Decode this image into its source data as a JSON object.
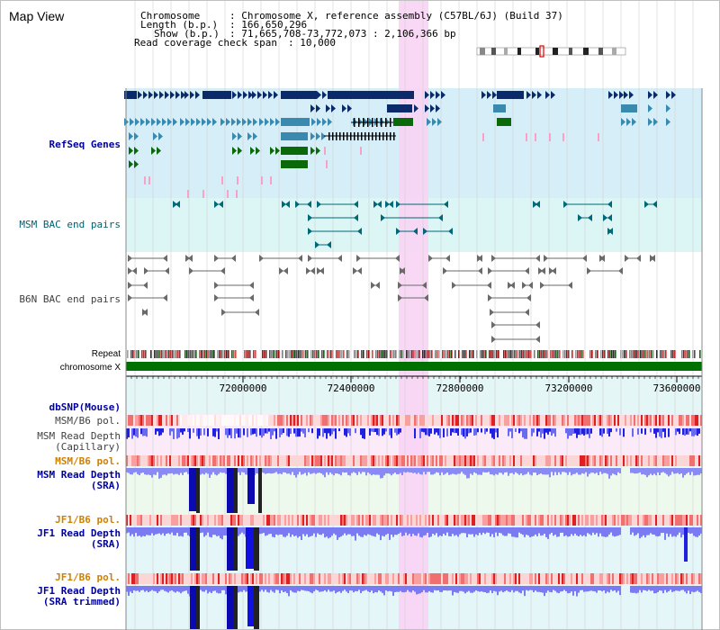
{
  "title": "Map View",
  "info": {
    "chromosome_label": "Chromosome",
    "chromosome_value": ": Chromosome X, reference assembly (C57BL/6J) (Build 37)",
    "length_label": "Length (b.p.)",
    "length_value": ": 166,650,296",
    "show_label": "Show (b.p.)",
    "show_value": ": 71,665,708-73,772,073 : 2,106,366 bp",
    "span_label": "Read coverage check span",
    "span_value": ": 10,000"
  },
  "tracks": {
    "refseq": "RefSeq Genes",
    "msm_bac": "MSM BAC end pairs",
    "b6n_bac": "B6N BAC end pairs",
    "repeat": "Repeat",
    "chromosome": "chromosome X"
  },
  "axis": {
    "start": 71665708,
    "end": 73772073,
    "ticks": [
      "72000000",
      "72400000",
      "72800000",
      "73200000",
      "73600000"
    ]
  },
  "lower_tracks": {
    "dbsnp": "dbSNP(Mouse)",
    "msm_b6_pol_1": "MSM/B6 pol.",
    "msm_depth_cap": "MSM Read Depth",
    "msm_depth_cap_sub": "(Capillary)",
    "msm_b6_pol_2": "MSM/B6 pol.",
    "msm_depth_sra": "MSM Read Depth",
    "msm_depth_sra_sub": "(SRA)",
    "jf1_b6_pol_1": "JF1/B6 pol.",
    "jf1_depth_sra": "JF1 Read Depth",
    "jf1_depth_sra_sub": "(SRA)",
    "jf1_b6_pol_2": "JF1/B6 pol.",
    "jf1_depth_trim": "JF1 Read Depth",
    "jf1_depth_trim_sub": "(SRA trimmed)"
  },
  "colors": {
    "refseq_bg": "#d6eef8",
    "msm_bg": "#dcf6f6",
    "highlight": "#f8d4f4",
    "gene_dark": "#0a2a6a",
    "gene_mid": "#3a8ab0",
    "gene_green": "#0a6a0a",
    "chromosome_bar": "#007000",
    "label_blue": "#0000a0",
    "label_orange": "#d08000",
    "label_cyan": "#006070"
  }
}
